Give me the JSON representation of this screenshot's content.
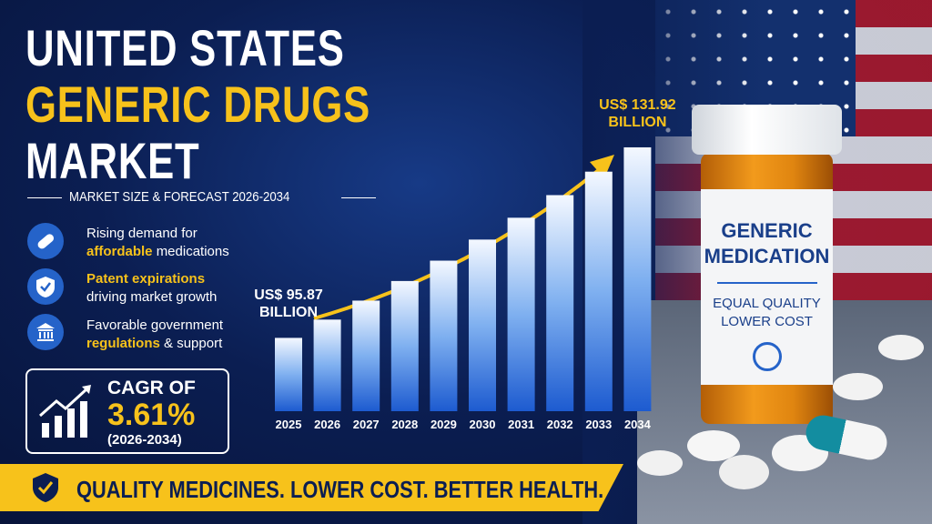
{
  "header": {
    "title_lines": [
      "UNITED STATES",
      "GENERIC DRUGS",
      "MARKET"
    ],
    "subtitle": "MARKET SIZE & FORECAST 2026-2034"
  },
  "bullets": [
    {
      "text_before": "Rising demand for",
      "highlight": "affordable",
      "text_after": "medications"
    },
    {
      "highlight": "Patent expirations",
      "text_after": "driving market growth"
    },
    {
      "text_before": "Favorable government",
      "highlight": "regulations",
      "text_after": "& support"
    }
  ],
  "cagr": {
    "label": "CAGR OF",
    "value": "3.61%",
    "period": "(2026-2034)"
  },
  "chart_data": {
    "type": "bar",
    "categories": [
      "2025",
      "2026",
      "2027",
      "2028",
      "2029",
      "2030",
      "2031",
      "2032",
      "2033",
      "2034"
    ],
    "values": [
      95.87,
      99.33,
      102.92,
      106.63,
      110.48,
      114.47,
      118.6,
      122.88,
      127.32,
      131.92
    ],
    "value_labels": [
      "US$ 95.87 BILLION",
      null,
      null,
      null,
      null,
      null,
      null,
      null,
      null,
      "US$ 131.92 BILLION"
    ],
    "ylim": [
      82,
      132
    ]
  },
  "bottle_label": {
    "title": "GENERIC MEDICATION",
    "subtitle": "EQUAL QUALITY LOWER COST"
  },
  "banner": "QUALITY MEDICINES. LOWER COST. BETTER HEALTH."
}
